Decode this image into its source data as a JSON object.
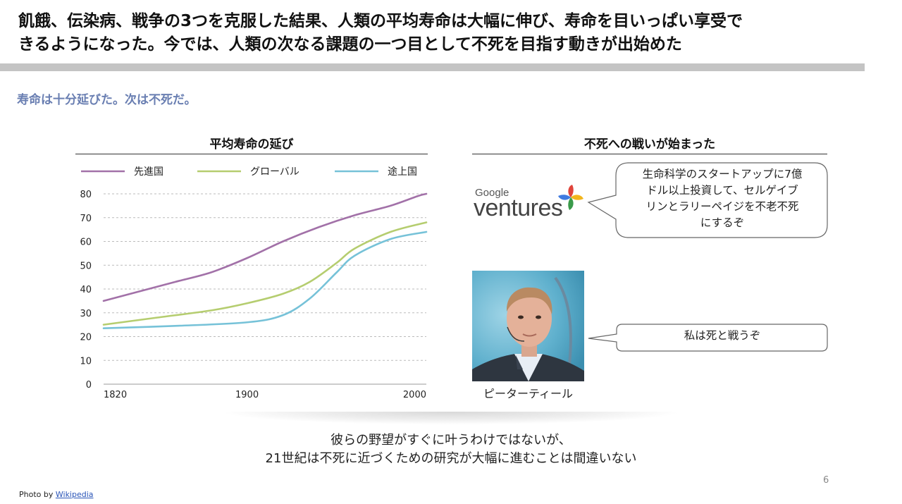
{
  "slide": {
    "title_line1": "飢餓、伝染病、戦争の3つを克服した結果、人類の平均寿命は大幅に伸び、寿命を目いっぱい享受で",
    "title_line2": "きるようになった。今では、人類の次なる課題の一つ目として不死を目指す動きが出始めた",
    "subtitle": "寿命は十分延びた。次は不死だ。",
    "page_number": "6"
  },
  "chart_section": {
    "header": "平均寿命の延び"
  },
  "chart_data": {
    "type": "line",
    "title": "",
    "xlabel": "",
    "ylabel": "",
    "x_ticks": [
      "1820",
      "1900",
      "2000"
    ],
    "y_ticks": [
      "80",
      "70",
      "60",
      "50",
      "40",
      "30",
      "20",
      "10",
      "0"
    ],
    "xlim": [
      1820,
      2000
    ],
    "ylim": [
      0,
      80
    ],
    "grid": true,
    "legend_position": "top",
    "series": [
      {
        "name": "先進国",
        "color": "#a271a8",
        "x": [
          1820,
          1840,
          1860,
          1880,
          1900,
          1920,
          1940,
          1960,
          1980,
          1995,
          2000
        ],
        "y": [
          35,
          39,
          43,
          47,
          53,
          60,
          66,
          71,
          75,
          79,
          80
        ]
      },
      {
        "name": "グローバル",
        "color": "#b5cd6f",
        "x": [
          1820,
          1850,
          1880,
          1900,
          1920,
          1935,
          1950,
          1960,
          1980,
          2000
        ],
        "y": [
          25,
          28,
          31,
          34,
          38,
          43,
          51,
          57,
          64,
          68
        ]
      },
      {
        "name": "途上国",
        "color": "#76c2d8",
        "x": [
          1820,
          1860,
          1900,
          1920,
          1935,
          1950,
          1960,
          1980,
          2000
        ],
        "y": [
          23.5,
          24.5,
          26,
          29,
          36,
          47,
          54,
          61,
          64
        ]
      }
    ]
  },
  "right_section": {
    "header": "不死への戦いが始まった",
    "logo_google": "Google",
    "logo_ventures": "ventures",
    "bubble1_line1": "生命科学のスタートアップに7億",
    "bubble1_line2": "ドル以上投資して、セルゲイブ",
    "bubble1_line3": "リンとラリーペイジを不老不死",
    "bubble1_line4": "にするぞ",
    "bubble2_text": "私は死と戦うぞ",
    "photo_caption": "ピーターティール"
  },
  "conclusion": {
    "line1": "彼らの野望がすぐに叶うわけではないが、",
    "line2": "21世紀は不死に近づくための研究が大幅に進むことは間違いない"
  },
  "credit": {
    "prefix": "Photo by ",
    "link": "Wikipedia"
  }
}
